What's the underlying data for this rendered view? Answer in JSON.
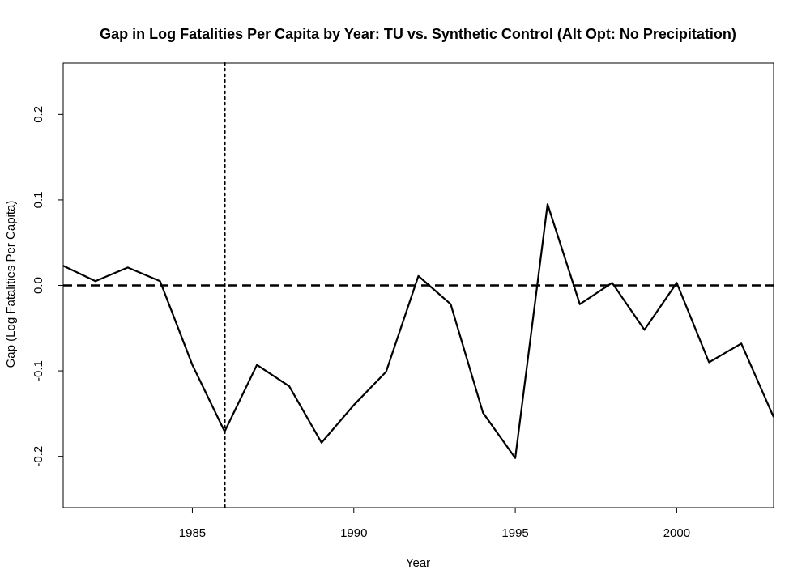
{
  "chart_data": {
    "type": "line",
    "title": "Gap in Log Fatalities Per Capita by Year: TU vs. Synthetic Control (Alt Opt: No Precipitation)",
    "xlabel": "Year",
    "ylabel": "Gap (Log Fatalities Per Capita)",
    "xlim": [
      1981,
      2003
    ],
    "ylim": [
      -0.26,
      0.26
    ],
    "x_ticks": [
      1985,
      1990,
      1995,
      2000
    ],
    "x_tick_labels": [
      "1985",
      "1990",
      "1995",
      "2000"
    ],
    "y_ticks": [
      -0.2,
      -0.1,
      0.0,
      0.1,
      0.2
    ],
    "y_tick_labels": [
      "-0.2",
      "-0.1",
      "0.0",
      "0.1",
      "0.2"
    ],
    "grid": false,
    "legend": "none",
    "series": [
      {
        "x": [
          1981,
          1982,
          1983,
          1984,
          1985,
          1986,
          1987,
          1988,
          1989,
          1990,
          1991,
          1992,
          1993,
          1994,
          1995,
          1996,
          1997,
          1998,
          1999,
          2000,
          2001,
          2002,
          2003
        ],
        "values": [
          0.023,
          0.005,
          0.021,
          0.005,
          -0.093,
          -0.171,
          -0.093,
          -0.118,
          -0.184,
          -0.14,
          -0.101,
          0.011,
          -0.022,
          -0.149,
          -0.202,
          0.095,
          -0.022,
          0.003,
          -0.052,
          0.003,
          -0.09,
          -0.068,
          -0.154
        ],
        "color": "#000000"
      }
    ],
    "reference_lines": [
      {
        "orientation": "horizontal",
        "value": 0.0,
        "style": "dashed",
        "color": "#000000"
      },
      {
        "orientation": "vertical",
        "value": 1986,
        "style": "dotted",
        "color": "#000000"
      }
    ]
  }
}
